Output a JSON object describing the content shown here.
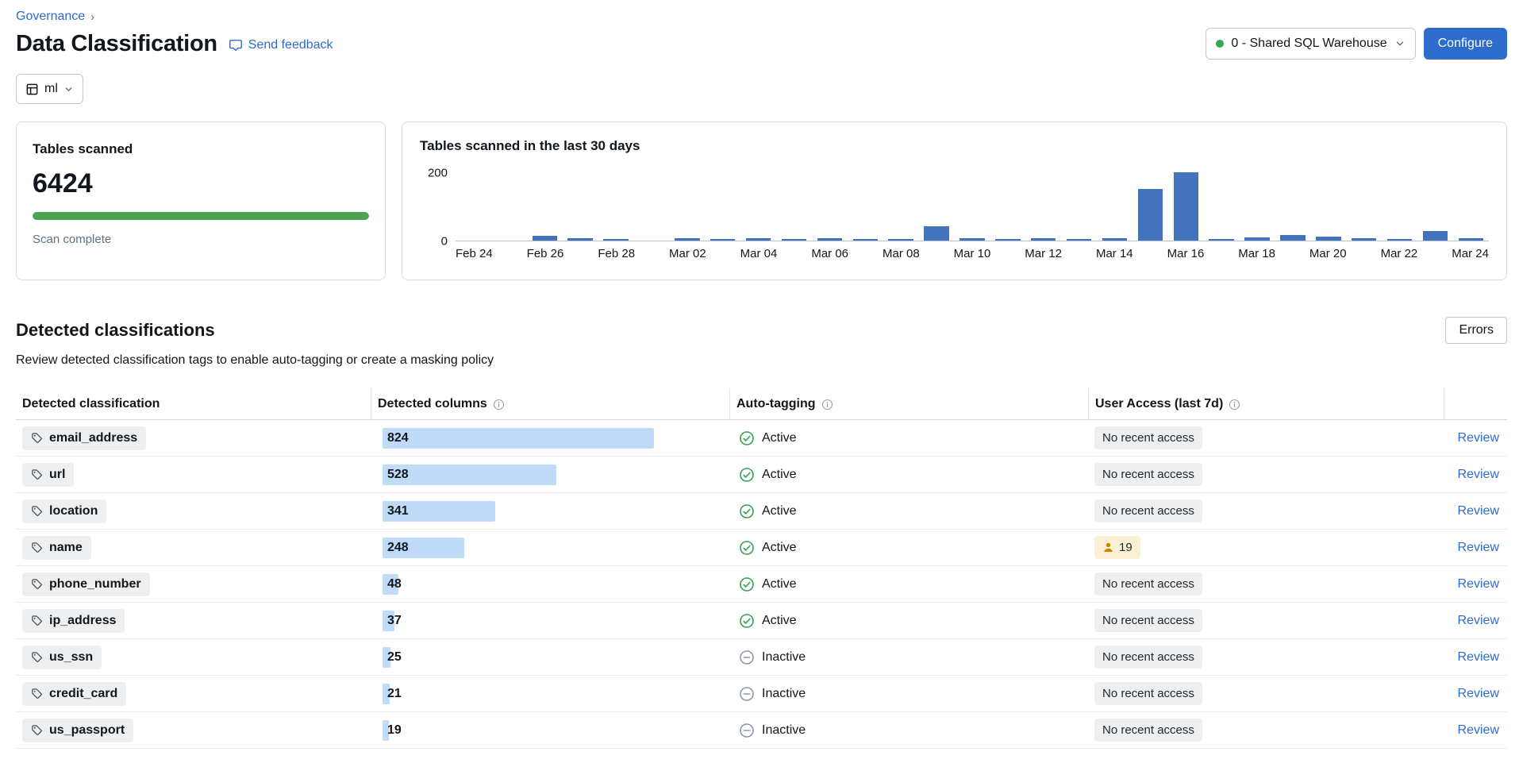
{
  "colors": {
    "accent_blue": "#2D6CCC",
    "primary_button": "#2D6CCC",
    "chart_bar": "#4473BD",
    "progress_green": "#4FA24F",
    "active_green": "#35A053",
    "inactive_gray": "#8D98A5",
    "warning_orange": "#C98500",
    "column_bar_blue": "#BFDBF7"
  },
  "breadcrumb": {
    "governance": "Governance"
  },
  "header": {
    "title": "Data Classification",
    "feedback_link": "Send feedback",
    "warehouse_selector": "0 - Shared SQL Warehouse",
    "configure_button": "Configure"
  },
  "catalog_selector": {
    "value": "ml"
  },
  "scan_card": {
    "title": "Tables scanned",
    "count": "6424",
    "status": "Scan complete"
  },
  "chart_data": {
    "type": "bar",
    "title": "Tables scanned in the last 30 days",
    "x": [
      "Feb 24",
      "Feb 25",
      "Feb 26",
      "Feb 27",
      "Feb 28",
      "Mar 01",
      "Mar 02",
      "Mar 03",
      "Mar 04",
      "Mar 05",
      "Mar 06",
      "Mar 07",
      "Mar 08",
      "Mar 09",
      "Mar 10",
      "Mar 11",
      "Mar 12",
      "Mar 13",
      "Mar 14",
      "Mar 15",
      "Mar 16",
      "Mar 17",
      "Mar 18",
      "Mar 19",
      "Mar 20",
      "Mar 21",
      "Mar 22",
      "Mar 23",
      "Mar 24"
    ],
    "values": [
      0,
      0,
      14,
      7,
      3,
      0,
      8,
      3,
      7,
      3,
      8,
      3,
      3,
      42,
      6,
      4,
      7,
      4,
      6,
      150,
      200,
      5,
      10,
      16,
      12,
      8,
      4,
      28,
      8
    ],
    "ylim": [
      0,
      200
    ],
    "yticks": [
      0,
      200
    ],
    "xticks_every": 2,
    "xlabel": "",
    "ylabel": "",
    "grid": false,
    "legend": false
  },
  "section": {
    "title": "Detected classifications",
    "subtitle": "Review detected classification tags to enable auto-tagging or create a masking policy",
    "errors_button": "Errors"
  },
  "table": {
    "columns": [
      {
        "label": "Detected classification",
        "info": false
      },
      {
        "label": "Detected columns",
        "info": true
      },
      {
        "label": "Auto-tagging",
        "info": true
      },
      {
        "label": "User Access (last 7d)",
        "info": true
      }
    ],
    "review_label": "Review",
    "rows": [
      {
        "classification": "email_address",
        "detected_columns": 824,
        "auto_tagging": "Active",
        "user_access": "No recent access"
      },
      {
        "classification": "url",
        "detected_columns": 528,
        "auto_tagging": "Active",
        "user_access": "No recent access"
      },
      {
        "classification": "location",
        "detected_columns": 341,
        "auto_tagging": "Active",
        "user_access": "No recent access"
      },
      {
        "classification": "name",
        "detected_columns": 248,
        "auto_tagging": "Active",
        "user_access_count": 19
      },
      {
        "classification": "phone_number",
        "detected_columns": 48,
        "auto_tagging": "Active",
        "user_access": "No recent access"
      },
      {
        "classification": "ip_address",
        "detected_columns": 37,
        "auto_tagging": "Active",
        "user_access": "No recent access"
      },
      {
        "classification": "us_ssn",
        "detected_columns": 25,
        "auto_tagging": "Inactive",
        "user_access": "No recent access"
      },
      {
        "classification": "credit_card",
        "detected_columns": 21,
        "auto_tagging": "Inactive",
        "user_access": "No recent access"
      },
      {
        "classification": "us_passport",
        "detected_columns": 19,
        "auto_tagging": "Inactive",
        "user_access": "No recent access"
      }
    ]
  }
}
